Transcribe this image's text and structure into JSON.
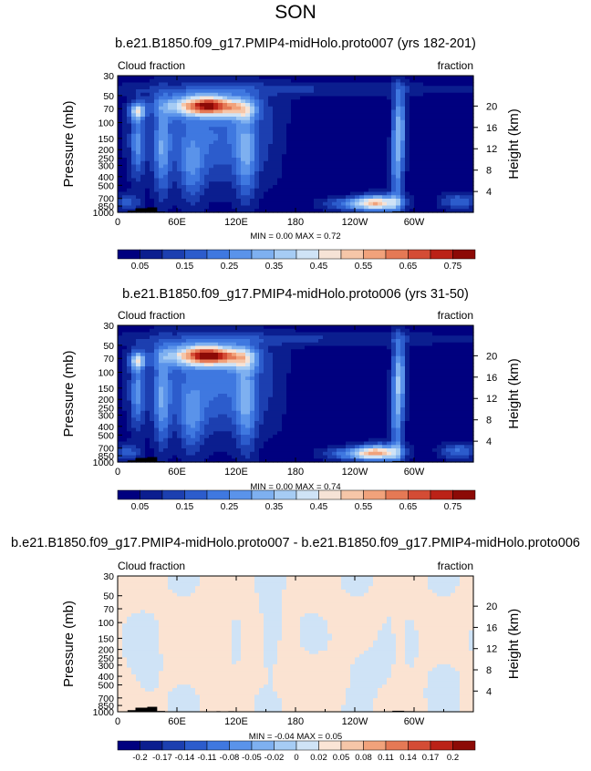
{
  "page_title": "SON",
  "chart_data": [
    {
      "type": "heatmap",
      "title": "b.e21.B1850.f09_g17.PMIP4-midHolo.proto007 (yrs 182-201)",
      "left_label": "Cloud fraction",
      "right_label": "fraction",
      "ylabel": "Pressure (mb)",
      "ylabel_right": "Height (km)",
      "x_ticks": [
        "0",
        "60E",
        "120E",
        "180",
        "120W",
        "60W"
      ],
      "y_ticks": [
        "1000",
        "850",
        "700",
        "500",
        "400",
        "300",
        "250",
        "200",
        "150",
        "100",
        "70",
        "50",
        "30"
      ],
      "height_ticks": [
        "4",
        "8",
        "12",
        "16",
        "20"
      ],
      "stats": "MIN =   0.00  MAX =   0.72",
      "min": 0.0,
      "max": 0.72,
      "colorbar_labels": [
        "0.05",
        "0.15",
        "0.25",
        "0.35",
        "0.45",
        "0.55",
        "0.65",
        "0.75"
      ]
    },
    {
      "type": "heatmap",
      "title": "b.e21.B1850.f09_g17.PMIP4-midHolo.proto006 (yrs 31-50)",
      "left_label": "Cloud fraction",
      "right_label": "fraction",
      "ylabel": "Pressure (mb)",
      "ylabel_right": "Height (km)",
      "x_ticks": [
        "0",
        "60E",
        "120E",
        "180",
        "120W",
        "60W"
      ],
      "y_ticks": [
        "1000",
        "850",
        "700",
        "500",
        "400",
        "300",
        "250",
        "200",
        "150",
        "100",
        "70",
        "50",
        "30"
      ],
      "height_ticks": [
        "4",
        "8",
        "12",
        "16",
        "20"
      ],
      "stats": "MIN =   0.00  MAX =   0.74",
      "min": 0.0,
      "max": 0.74,
      "colorbar_labels": [
        "0.05",
        "0.15",
        "0.25",
        "0.35",
        "0.45",
        "0.55",
        "0.65",
        "0.75"
      ]
    },
    {
      "type": "heatmap",
      "title": "b.e21.B1850.f09_g17.PMIP4-midHolo.proto007 - b.e21.B1850.f09_g17.PMIP4-midHolo.proto006",
      "left_label": "Cloud fraction",
      "right_label": "fraction",
      "ylabel": "Pressure (mb)",
      "ylabel_right": "Height (km)",
      "x_ticks": [
        "0",
        "60E",
        "120E",
        "180",
        "120W",
        "60W"
      ],
      "y_ticks": [
        "1000",
        "850",
        "700",
        "500",
        "400",
        "300",
        "250",
        "200",
        "150",
        "100",
        "70",
        "50",
        "30"
      ],
      "height_ticks": [
        "4",
        "8",
        "12",
        "16",
        "20"
      ],
      "stats": "MIN =  -0.04  MAX =   0.05",
      "min": -0.04,
      "max": 0.05,
      "colorbar_labels": [
        "-0.2",
        "-0.17",
        "-0.14",
        "-0.11",
        "-0.08",
        "-0.05",
        "-0.02",
        "0",
        "0.02",
        "0.05",
        "0.08",
        "0.11",
        "0.14",
        "0.17",
        "0.2"
      ]
    }
  ],
  "colors": {
    "abs_scale": [
      "#00007f",
      "#0b1e8f",
      "#1c3fb0",
      "#2c5ccc",
      "#3f78e0",
      "#5a93ea",
      "#7eb0f0",
      "#a6ccf4",
      "#cfe3f6",
      "#f6e3d6",
      "#f6c6a8",
      "#f1a27b",
      "#e57955",
      "#d44c35",
      "#bb2217",
      "#8c0a06",
      "#680000"
    ],
    "diff_scale": [
      "#00007f",
      "#0b1e8f",
      "#1c3fb0",
      "#2c5ccc",
      "#3f78e0",
      "#5a93ea",
      "#7eb0f0",
      "#a6ccf4",
      "#cfe3f6",
      "#fbe5d6",
      "#f6c6a8",
      "#f1a27b",
      "#e57955",
      "#d44c35",
      "#bb2217",
      "#8c0a06",
      "#680000"
    ],
    "topography": "#000000"
  }
}
